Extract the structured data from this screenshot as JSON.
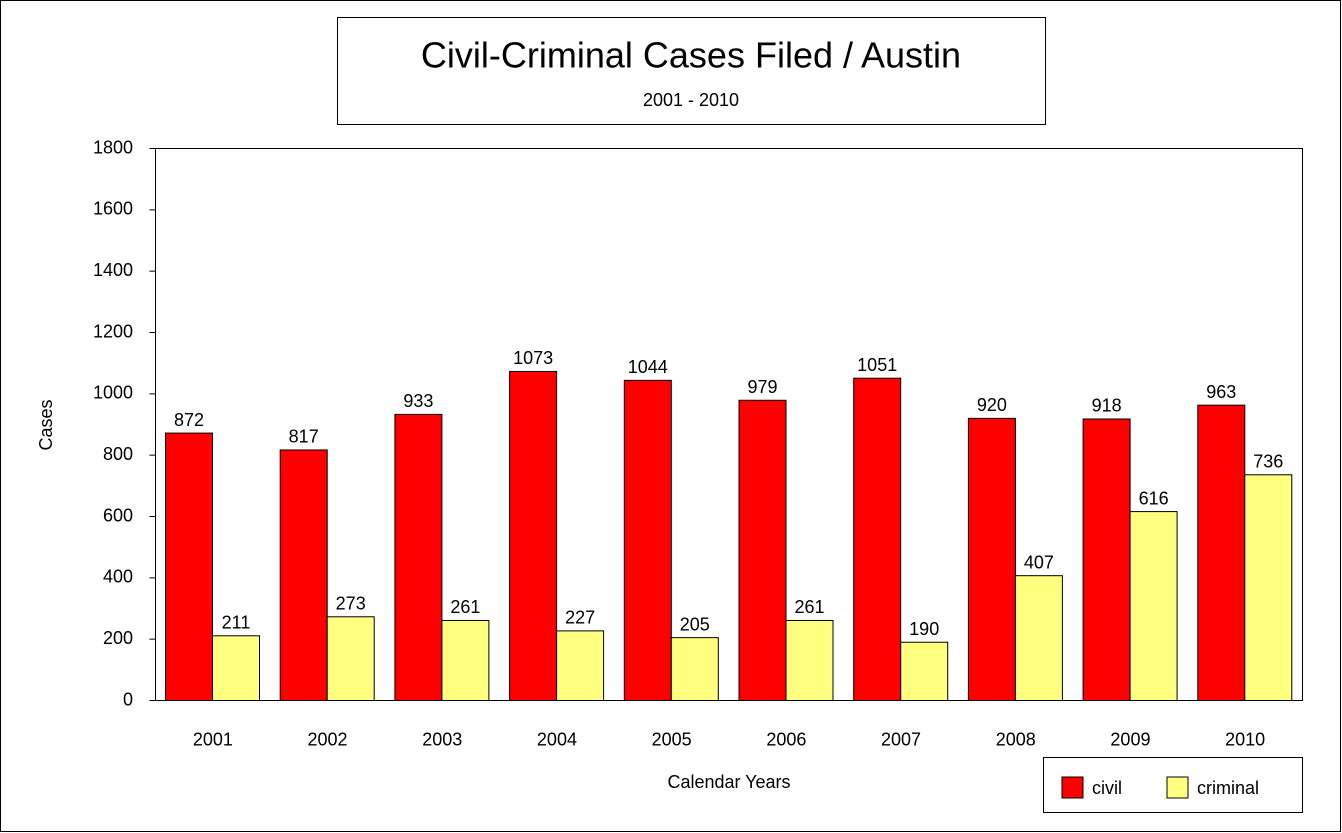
{
  "chart_data": {
    "type": "bar",
    "title": "Civil-Criminal Cases Filed / Austin",
    "subtitle": "2001 - 2010",
    "x_label": "Calendar Years",
    "y_label": "Cases",
    "categories": [
      "2001",
      "2002",
      "2003",
      "2004",
      "2005",
      "2006",
      "2007",
      "2008",
      "2009",
      "2010"
    ],
    "series": [
      {
        "name": "civil",
        "color": "#ff0000",
        "values": [
          872,
          817,
          933,
          1073,
          1044,
          979,
          1051,
          920,
          918,
          963
        ]
      },
      {
        "name": "criminal",
        "color": "#ffff80",
        "values": [
          211,
          273,
          261,
          227,
          205,
          261,
          190,
          407,
          616,
          736
        ]
      }
    ],
    "ylim": [
      0,
      1800
    ],
    "yticks": [
      0,
      200,
      400,
      600,
      800,
      1000,
      1200,
      1400,
      1600,
      1800
    ],
    "grid": false,
    "legend": "lower right"
  }
}
